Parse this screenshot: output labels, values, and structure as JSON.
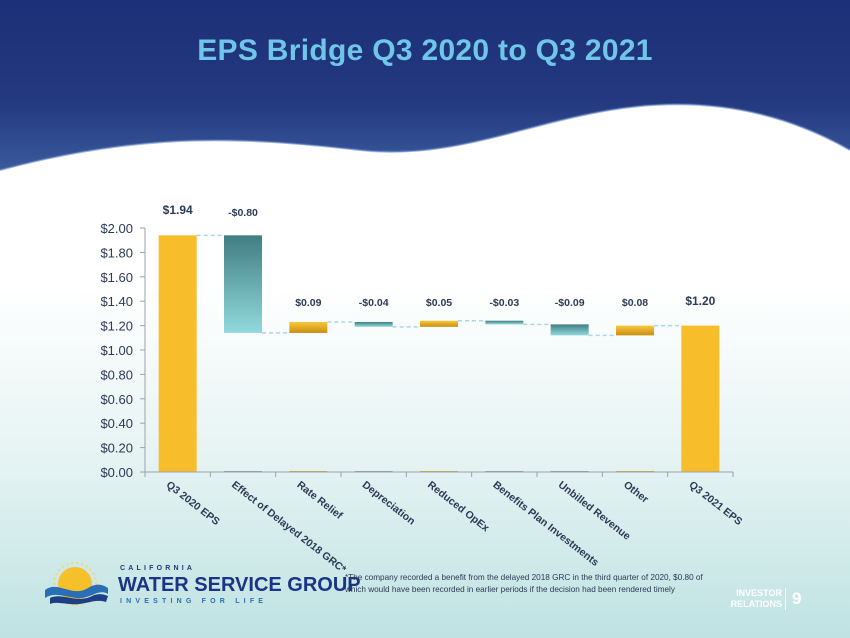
{
  "slide": {
    "title": "EPS Bridge Q3 2020 to Q3 2021",
    "footnote": "*The company recorded a benefit from the delayed 2018 GRC in the third quarter of 2020, $0.80 of which would have been recorded in earlier periods if the decision had been rendered timely",
    "ir_line1": "INVESTOR",
    "ir_line2": "RELATIONS",
    "page_number": "9",
    "logo": {
      "top": "CALIFORNIA",
      "main": "WATER SERVICE GROUP",
      "bottom": "INVESTING FOR LIFE"
    }
  },
  "colors": {
    "header": "#24377f",
    "title": "#6fc6e8",
    "gold": "#f7bd2a",
    "teal_dark": "#4a8a8e",
    "teal_light": "#8fd6d9",
    "axis_text": "#2b3a55",
    "connector": "#a9d6e8"
  },
  "chart_data": {
    "type": "waterfall",
    "categories": [
      "Q3 2020 EPS",
      "Effect of Delayed 2018 GRC*",
      "Rate Relief",
      "Depreciation",
      "Reduced OpEx",
      "Benefits Plan Investments",
      "Unbilled Revenue",
      "Other",
      "Q3 2021 EPS"
    ],
    "values": [
      1.94,
      -0.8,
      0.09,
      -0.04,
      0.05,
      -0.03,
      -0.09,
      0.08,
      1.2
    ],
    "kinds": [
      "total",
      "delta",
      "delta",
      "delta",
      "delta",
      "delta",
      "delta",
      "delta",
      "total"
    ],
    "data_labels": [
      "$1.94",
      "-$0.80",
      "$0.09",
      "-$0.04",
      "$0.05",
      "-$0.03",
      "-$0.09",
      "$0.08",
      "$1.20"
    ],
    "ylim": [
      0,
      2.0
    ],
    "yticks": [
      0,
      0.2,
      0.4,
      0.6,
      0.8,
      1.0,
      1.2,
      1.4,
      1.6,
      1.8,
      2.0
    ],
    "ytick_labels": [
      "$0.00",
      "$0.20",
      "$0.40",
      "$0.60",
      "$0.80",
      "$1.00",
      "$1.20",
      "$1.40",
      "$1.60",
      "$1.80",
      "$2.00"
    ],
    "grid": false,
    "legend": "none"
  }
}
